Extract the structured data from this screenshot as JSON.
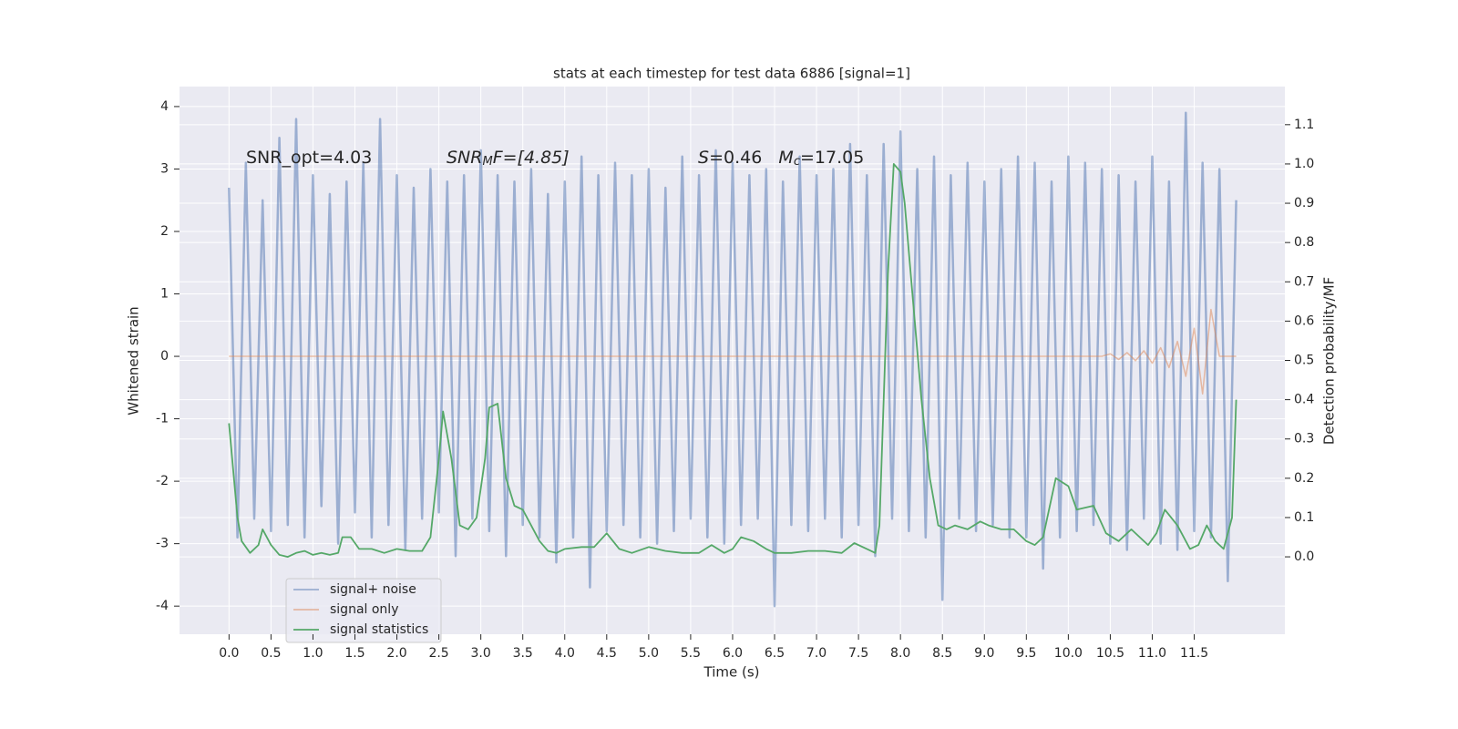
{
  "chart_data": {
    "type": "line",
    "title": "stats at each timestep for test data 6886 [signal=1]",
    "xlabel": "Time (s)",
    "ylabel": "Whitened strain",
    "y2label": "Detection probability/MF",
    "annotations": [
      [
        "SNR_opt=4.03"
      ],
      [
        "SNR",
        "M",
        "F=[4.85]"
      ],
      [
        "S",
        "=0.46   ",
        "M",
        "c",
        "=17.05"
      ]
    ],
    "legend": "lower left",
    "grid": true,
    "xlim": [
      -0.59,
      12.58
    ],
    "ylim": [
      -4.45,
      4.32
    ],
    "y2lim": [
      -0.197,
      1.197
    ],
    "xticks": [
      {
        "value": 0,
        "label": "0.0"
      },
      0.5,
      {
        "value": 1,
        "label": "1.0"
      },
      1.5,
      {
        "value": 2,
        "label": "2.0"
      },
      2.5,
      {
        "value": 3,
        "label": "3.0"
      },
      3.5,
      {
        "value": 4,
        "label": "4.0"
      },
      4.5,
      {
        "value": 5,
        "label": "5.0"
      },
      5.5,
      {
        "value": 6,
        "label": "6.0"
      },
      6.5,
      {
        "value": 7,
        "label": "7.0"
      },
      7.5,
      {
        "value": 8,
        "label": "8.0"
      },
      8.5,
      {
        "value": 9,
        "label": "9.0"
      },
      9.5,
      {
        "value": 10,
        "label": "10.0"
      },
      10.5,
      {
        "value": 11,
        "label": "11.0"
      },
      11.5
    ],
    "yticks": [
      -4,
      -3,
      -2,
      -1,
      0,
      1,
      2,
      3,
      4
    ],
    "y2ticks": [
      {
        "value": 0,
        "label": "0.0"
      },
      0.1,
      0.2,
      0.3,
      0.4,
      0.5,
      0.6,
      0.7,
      0.8,
      0.9,
      {
        "value": 1,
        "label": "1.0"
      },
      1.1
    ],
    "x": [
      0,
      0.1,
      0.2,
      0.3,
      0.4,
      0.5,
      0.6,
      0.7,
      0.8,
      0.9,
      1,
      1.1,
      1.2,
      1.3,
      1.4,
      1.5,
      1.6,
      1.7,
      1.8,
      1.9,
      2,
      2.1,
      2.2,
      2.3,
      2.4,
      2.5,
      2.6,
      2.7,
      2.8,
      2.9,
      3,
      3.1,
      3.2,
      3.3,
      3.4,
      3.5,
      3.6,
      3.7,
      3.8,
      3.9,
      4,
      4.1,
      4.2,
      4.3,
      4.4,
      4.5,
      4.6,
      4.7,
      4.8,
      4.9,
      5,
      5.1,
      5.2,
      5.3,
      5.4,
      5.5,
      5.6,
      5.7,
      5.8,
      5.9,
      6,
      6.1,
      6.2,
      6.3,
      6.4,
      6.5,
      6.6,
      6.7,
      6.8,
      6.9,
      7,
      7.1,
      7.2,
      7.3,
      7.4,
      7.5,
      7.6,
      7.7,
      7.8,
      7.9,
      8,
      8.1,
      8.2,
      8.3,
      8.4,
      8.5,
      8.6,
      8.7,
      8.8,
      8.9,
      9,
      9.1,
      9.2,
      9.3,
      9.4,
      9.5,
      9.6,
      9.7,
      9.8,
      9.9,
      10,
      10.1,
      10.2,
      10.3,
      10.4,
      10.5,
      10.6,
      10.7,
      10.8,
      10.9,
      11,
      11.1,
      11.2,
      11.3,
      11.4,
      11.5,
      11.6,
      11.7,
      11.8,
      11.9,
      12
    ],
    "series": [
      {
        "name": "signal+ noise",
        "color": "#4c72b0",
        "values": [
          2.7,
          -2.9,
          3.1,
          -2.6,
          2.5,
          -2.8,
          3.5,
          -2.7,
          3.8,
          -2.9,
          2.9,
          -2.4,
          2.6,
          -3.0,
          2.8,
          -2.5,
          3.1,
          -2.9,
          3.8,
          -2.7,
          2.9,
          -3.1,
          2.7,
          -2.6,
          3.0,
          -2.5,
          2.8,
          -3.2,
          2.9,
          -2.6,
          3.3,
          -2.8,
          2.9,
          -3.2,
          2.8,
          -2.7,
          3.0,
          -2.9,
          2.6,
          -3.3,
          2.8,
          -2.9,
          3.2,
          -3.7,
          2.9,
          -2.8,
          3.1,
          -2.7,
          2.9,
          -2.9,
          3.0,
          -3.0,
          2.7,
          -2.8,
          3.2,
          -2.6,
          2.9,
          -2.9,
          3.3,
          -3.0,
          3.1,
          -2.7,
          2.9,
          -2.6,
          3.0,
          -4.0,
          2.8,
          -2.7,
          3.2,
          -2.8,
          2.9,
          -2.6,
          3.0,
          -2.9,
          3.4,
          -2.7,
          2.9,
          -3.2,
          3.4,
          -2.6,
          3.6,
          -2.8,
          3.0,
          -2.9,
          3.2,
          -3.9,
          2.9,
          -2.6,
          3.1,
          -2.8,
          2.8,
          -2.7,
          3.0,
          -2.9,
          3.2,
          -2.9,
          3.1,
          -3.4,
          2.8,
          -2.9,
          3.2,
          -2.8,
          3.1,
          -2.7,
          3.0,
          -3.0,
          2.9,
          -3.1,
          2.8,
          -2.6,
          3.2,
          -3.0,
          2.8,
          -3.1,
          3.9,
          -2.8,
          3.1,
          -2.9,
          3.0,
          -3.6,
          2.5
        ]
      },
      {
        "name": "signal only",
        "color": "#dd8452",
        "values": [
          0,
          0,
          0,
          0,
          0,
          0,
          0,
          0,
          0,
          0,
          0,
          0,
          0,
          0,
          0,
          0,
          0,
          0,
          0,
          0,
          0,
          0,
          0,
          0,
          0,
          0,
          0,
          0,
          0,
          0,
          0,
          0,
          0,
          0,
          0,
          0,
          0,
          0,
          0,
          0,
          0,
          0,
          0,
          0,
          0,
          0,
          0,
          0,
          0,
          0,
          0,
          0,
          0,
          0,
          0,
          0,
          0,
          0,
          0,
          0,
          0,
          0,
          0,
          0,
          0,
          0,
          0,
          0,
          0,
          0,
          0,
          0,
          0,
          0,
          0,
          0,
          0,
          0,
          0,
          0,
          0,
          0,
          0,
          0,
          0,
          0,
          0,
          0,
          0,
          0,
          0,
          0,
          0,
          0,
          0,
          0,
          0,
          0,
          0,
          0,
          0,
          0,
          0,
          0,
          0,
          0.04,
          -0.05,
          0.06,
          -0.07,
          0.09,
          -0.11,
          0.14,
          -0.18,
          0.24,
          -0.32,
          0.45,
          -0.6,
          0.75,
          0,
          0,
          0
        ]
      },
      {
        "name": "signal statistics",
        "color": "#55a868",
        "axis": "y2",
        "x": [
          0,
          0.1,
          0.15,
          0.25,
          0.35,
          0.4,
          0.5,
          0.6,
          0.7,
          0.8,
          0.9,
          1.0,
          1.1,
          1.2,
          1.3,
          1.35,
          1.45,
          1.55,
          1.7,
          1.85,
          2.0,
          2.15,
          2.3,
          2.4,
          2.5,
          2.55,
          2.65,
          2.75,
          2.85,
          2.95,
          3.05,
          3.1,
          3.2,
          3.3,
          3.4,
          3.5,
          3.6,
          3.7,
          3.8,
          3.9,
          4.0,
          4.2,
          4.35,
          4.5,
          4.65,
          4.8,
          5.0,
          5.2,
          5.4,
          5.6,
          5.75,
          5.9,
          6.0,
          6.1,
          6.25,
          6.4,
          6.5,
          6.7,
          6.9,
          7.1,
          7.3,
          7.45,
          7.6,
          7.7,
          7.75,
          7.85,
          7.92,
          8.0,
          8.05,
          8.15,
          8.25,
          8.35,
          8.45,
          8.55,
          8.65,
          8.8,
          8.95,
          9.05,
          9.2,
          9.35,
          9.5,
          9.6,
          9.7,
          9.85,
          10.0,
          10.1,
          10.3,
          10.45,
          10.6,
          10.75,
          10.85,
          10.95,
          11.05,
          11.15,
          11.3,
          11.45,
          11.55,
          11.65,
          11.75,
          11.85,
          11.95,
          12.0
        ],
        "values": [
          0.34,
          0.1,
          0.04,
          0.01,
          0.03,
          0.07,
          0.03,
          0.005,
          0.0,
          0.01,
          0.015,
          0.005,
          0.01,
          0.005,
          0.01,
          0.05,
          0.05,
          0.02,
          0.02,
          0.01,
          0.02,
          0.015,
          0.015,
          0.05,
          0.25,
          0.37,
          0.25,
          0.08,
          0.07,
          0.1,
          0.25,
          0.38,
          0.39,
          0.2,
          0.13,
          0.12,
          0.08,
          0.04,
          0.015,
          0.01,
          0.02,
          0.025,
          0.025,
          0.06,
          0.02,
          0.01,
          0.025,
          0.015,
          0.01,
          0.01,
          0.03,
          0.01,
          0.02,
          0.05,
          0.04,
          0.02,
          0.01,
          0.01,
          0.015,
          0.015,
          0.01,
          0.035,
          0.02,
          0.01,
          0.08,
          0.72,
          1.0,
          0.98,
          0.9,
          0.65,
          0.4,
          0.2,
          0.08,
          0.07,
          0.08,
          0.07,
          0.09,
          0.08,
          0.07,
          0.07,
          0.04,
          0.03,
          0.05,
          0.2,
          0.18,
          0.12,
          0.13,
          0.06,
          0.04,
          0.07,
          0.05,
          0.03,
          0.06,
          0.12,
          0.08,
          0.02,
          0.03,
          0.08,
          0.04,
          0.02,
          0.1,
          0.4
        ]
      }
    ]
  }
}
